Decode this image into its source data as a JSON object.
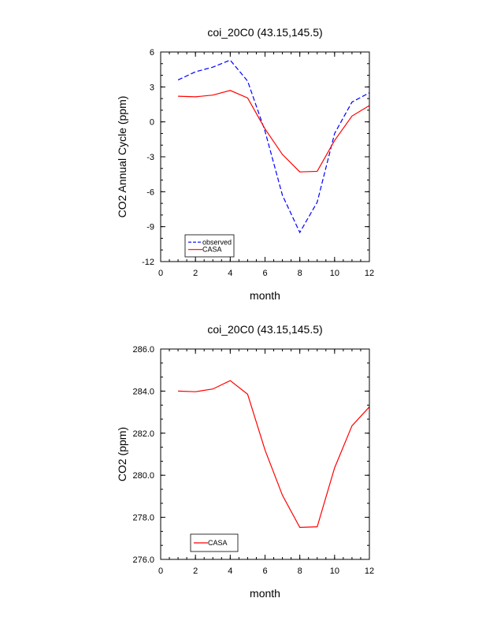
{
  "chart_data": [
    {
      "type": "line",
      "title": "coi_20C0 (43.15,145.5)",
      "xlabel": "month",
      "ylabel": "CO2 Annual Cycle (ppm)",
      "xlim": [
        0,
        12
      ],
      "ylim": [
        -12,
        6
      ],
      "xticks": [
        "0",
        "2",
        "4",
        "6",
        "8",
        "10",
        "12"
      ],
      "yticks": [
        "-12",
        "-9",
        "-6",
        "-3",
        "0",
        "3",
        "6"
      ],
      "legend_position": "bottom-left",
      "x": [
        1,
        2,
        3,
        4,
        5,
        6,
        7,
        8,
        9,
        10,
        11,
        12
      ],
      "series": [
        {
          "name": "observed",
          "color": "#0000ff",
          "style": "dashed",
          "values": [
            3.6,
            4.3,
            4.7,
            5.3,
            3.5,
            -0.8,
            -6.3,
            -9.5,
            -6.9,
            -1.0,
            1.7,
            2.5
          ]
        },
        {
          "name": "CASA",
          "color": "#ff0000",
          "style": "solid",
          "values": [
            2.2,
            2.15,
            2.3,
            2.7,
            2.05,
            -0.6,
            -2.8,
            -4.3,
            -4.25,
            -1.6,
            0.5,
            1.4
          ]
        }
      ]
    },
    {
      "type": "line",
      "title": "coi_20C0 (43.15,145.5)",
      "xlabel": "month",
      "ylabel": "CO2 (ppm)",
      "xlim": [
        0,
        12
      ],
      "ylim": [
        276,
        286
      ],
      "xticks": [
        "0",
        "2",
        "4",
        "6",
        "8",
        "10",
        "12"
      ],
      "yticks": [
        "276.0",
        "278.0",
        "280.0",
        "282.0",
        "284.0",
        "286.0"
      ],
      "legend_position": "bottom-left",
      "x": [
        1,
        2,
        3,
        4,
        5,
        6,
        7,
        8,
        9,
        10,
        11,
        12
      ],
      "series": [
        {
          "name": "CASA",
          "color": "#ff0000",
          "style": "solid",
          "values": [
            284.0,
            283.97,
            284.1,
            284.5,
            283.85,
            281.2,
            279.05,
            277.52,
            277.55,
            280.35,
            282.35,
            283.25
          ]
        }
      ]
    }
  ]
}
